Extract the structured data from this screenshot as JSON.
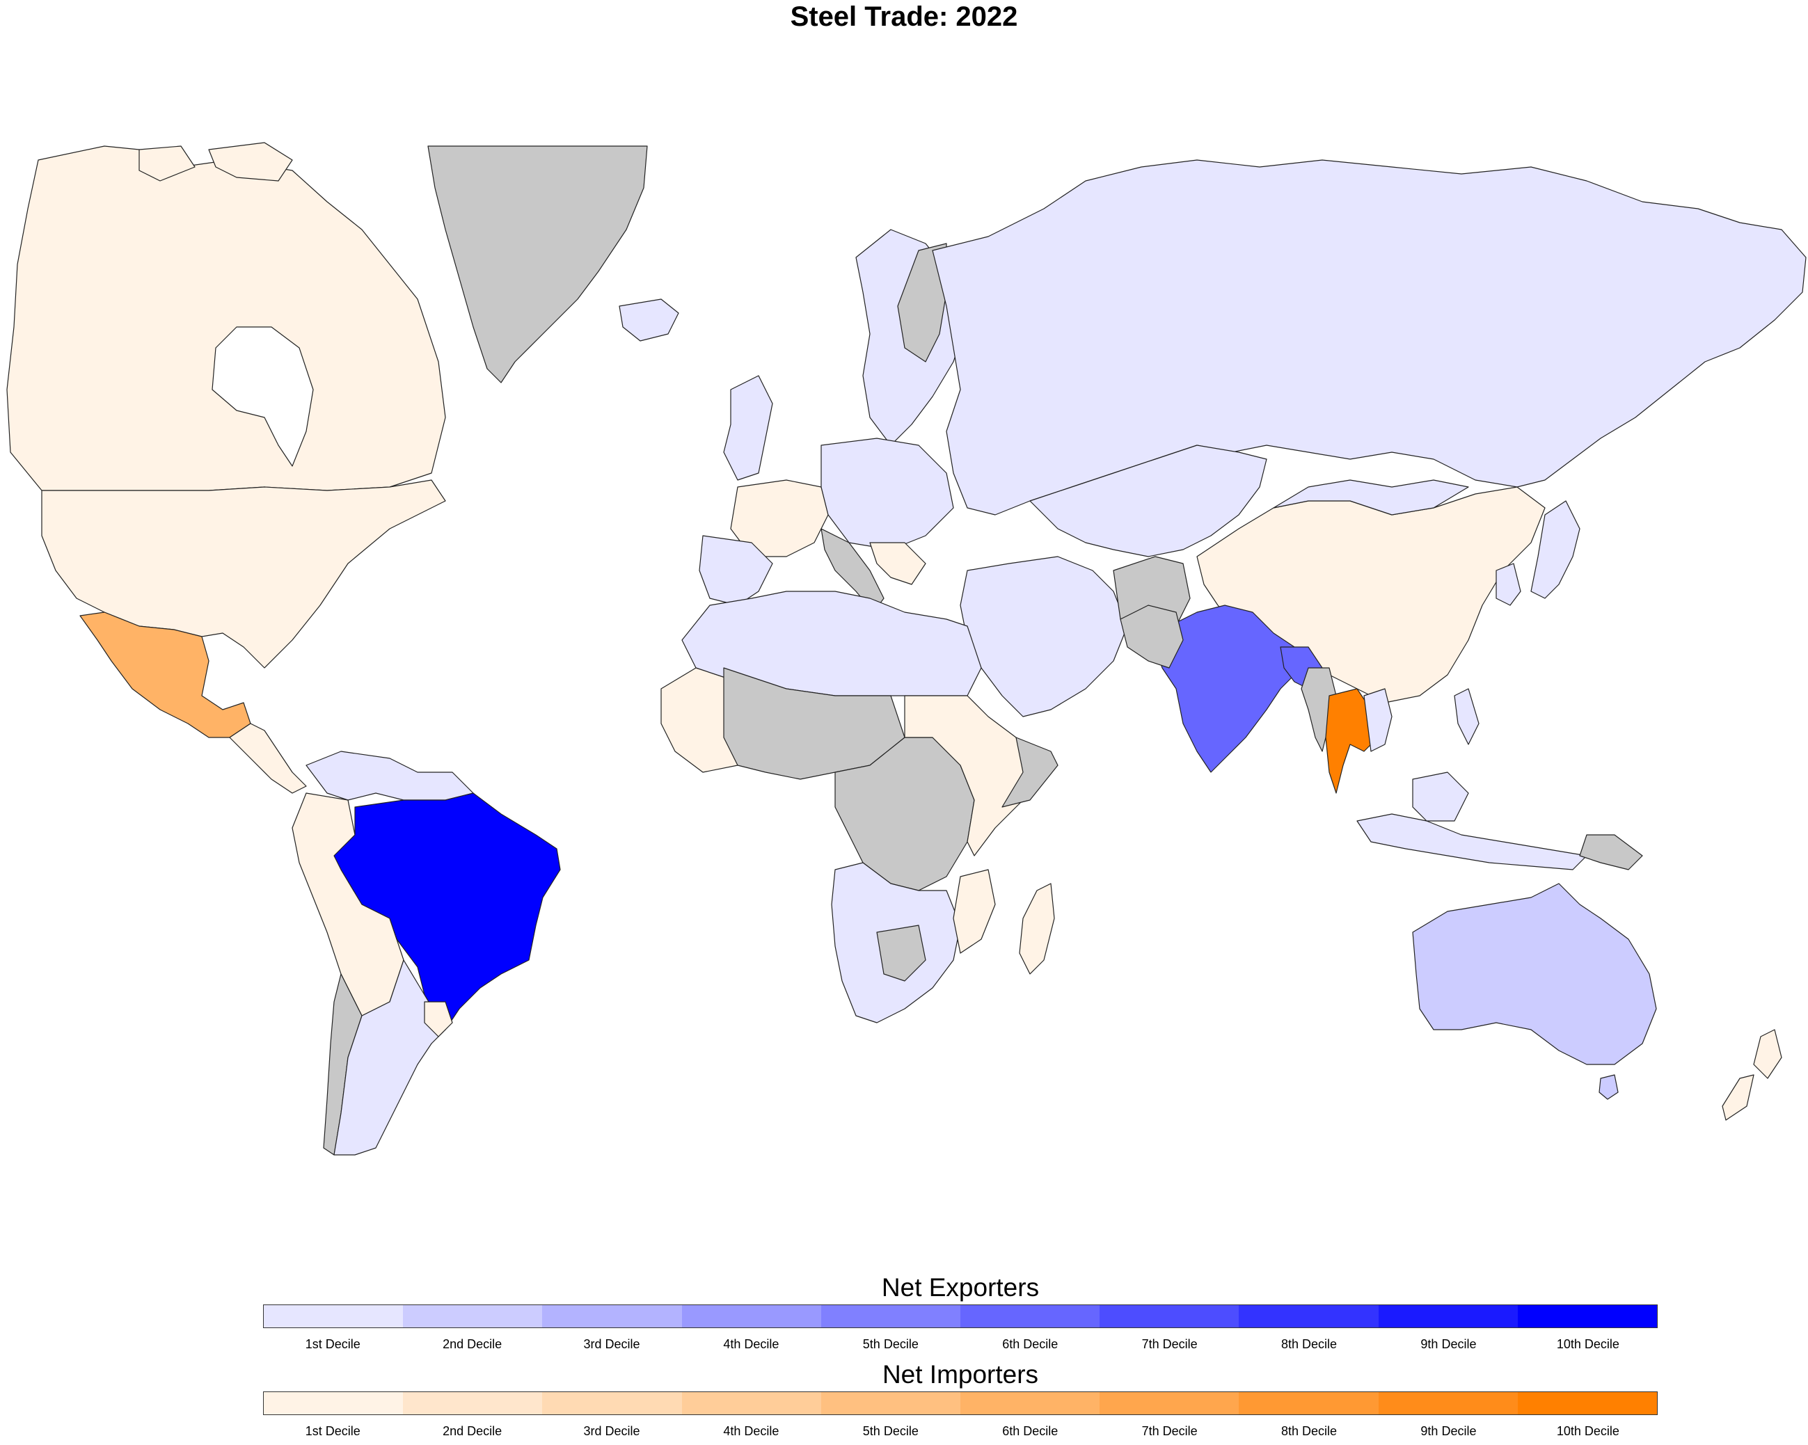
{
  "title": "Steel Trade: 2022",
  "colors": {
    "no_data": "#c8c8c8",
    "water": "#ffffff",
    "border": "#222222"
  },
  "legend": {
    "exporters": {
      "title": "Net Exporters",
      "colors": [
        "#e6e6ff",
        "#ccccff",
        "#b3b3ff",
        "#9999ff",
        "#8080ff",
        "#6666ff",
        "#4d4dff",
        "#3333ff",
        "#1a1aff",
        "#0000ff"
      ],
      "labels": [
        "1st Decile",
        "2nd Decile",
        "3rd Decile",
        "4th Decile",
        "5th Decile",
        "6th Decile",
        "7th Decile",
        "8th Decile",
        "9th Decile",
        "10th Decile"
      ]
    },
    "importers": {
      "title": "Net Importers",
      "colors": [
        "#fff3e6",
        "#ffe6cc",
        "#ffdab3",
        "#ffcd99",
        "#ffc080",
        "#ffb366",
        "#ffa64d",
        "#ff9933",
        "#ff8c1a",
        "#ff8000"
      ],
      "labels": [
        "1st Decile",
        "2nd Decile",
        "3rd Decile",
        "4th Decile",
        "5th Decile",
        "6th Decile",
        "7th Decile",
        "8th Decile",
        "9th Decile",
        "10th Decile"
      ]
    }
  },
  "map_regions": [
    {
      "name": "canada",
      "category": "importer",
      "decile": 1
    },
    {
      "name": "united-states",
      "category": "importer",
      "decile": 1
    },
    {
      "name": "mexico",
      "category": "importer",
      "decile": 6
    },
    {
      "name": "central-america",
      "category": "importer",
      "decile": 1
    },
    {
      "name": "greenland",
      "category": "no-data"
    },
    {
      "name": "brazil",
      "category": "exporter",
      "decile": 10
    },
    {
      "name": "argentina",
      "category": "exporter",
      "decile": 1
    },
    {
      "name": "chile",
      "category": "no-data"
    },
    {
      "name": "andean-south-america",
      "category": "importer",
      "decile": 1
    },
    {
      "name": "northern-south-america",
      "category": "exporter",
      "decile": 1
    },
    {
      "name": "russia",
      "category": "exporter",
      "decile": 1
    },
    {
      "name": "europe",
      "category": "exporter",
      "decile": 1
    },
    {
      "name": "scandinavia",
      "category": "exporter",
      "decile": 1
    },
    {
      "name": "western-europe",
      "category": "importer",
      "decile": 1
    },
    {
      "name": "north-africa",
      "category": "exporter",
      "decile": 1
    },
    {
      "name": "west-africa",
      "category": "importer",
      "decile": 1
    },
    {
      "name": "central-africa",
      "category": "no-data"
    },
    {
      "name": "east-africa",
      "category": "importer",
      "decile": 1
    },
    {
      "name": "southern-africa",
      "category": "exporter",
      "decile": 1
    },
    {
      "name": "madagascar",
      "category": "importer",
      "decile": 1
    },
    {
      "name": "middle-east",
      "category": "exporter",
      "decile": 1
    },
    {
      "name": "central-asia",
      "category": "exporter",
      "decile": 1
    },
    {
      "name": "china",
      "category": "importer",
      "decile": 1
    },
    {
      "name": "india",
      "category": "exporter",
      "decile": 6
    },
    {
      "name": "bangladesh",
      "category": "exporter",
      "decile": 6
    },
    {
      "name": "thailand",
      "category": "importer",
      "decile": 10
    },
    {
      "name": "myanmar",
      "category": "no-data"
    },
    {
      "name": "southeast-asia",
      "category": "exporter",
      "decile": 1
    },
    {
      "name": "japan-korea",
      "category": "exporter",
      "decile": 1
    },
    {
      "name": "australia",
      "category": "exporter",
      "decile": 2
    },
    {
      "name": "new-zealand",
      "category": "importer",
      "decile": 1
    },
    {
      "name": "papua-new-guinea",
      "category": "no-data"
    }
  ]
}
